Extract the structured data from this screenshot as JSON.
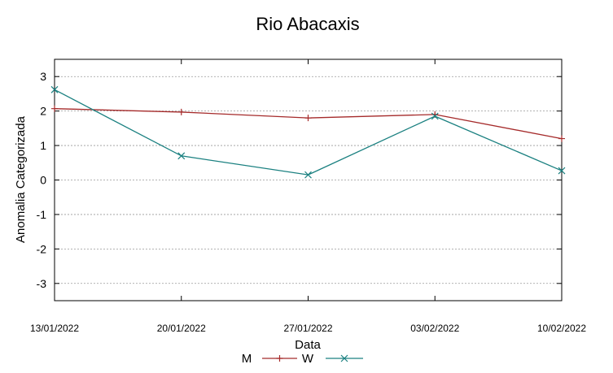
{
  "chart_data": {
    "type": "line",
    "title": "Rio Abacaxis",
    "xlabel": "Data",
    "ylabel": "Anomalia Categorizada",
    "categories": [
      "13/01/2022",
      "20/01/2022",
      "27/01/2022",
      "03/02/2022",
      "10/02/2022"
    ],
    "ylim": [
      -3.5,
      3.5
    ],
    "yticks": [
      "3",
      "2",
      "1",
      "0",
      "-1",
      "-2",
      "-3"
    ],
    "grid": true,
    "legend_position": "bottom-center",
    "series": [
      {
        "name": "M",
        "values": [
          2.07,
          1.97,
          1.8,
          1.9,
          1.2
        ],
        "color": "#a52a2a",
        "marker": "plus"
      },
      {
        "name": "W",
        "values": [
          2.62,
          0.7,
          0.15,
          1.85,
          0.27
        ],
        "color": "#1a8080",
        "marker": "cross"
      }
    ]
  }
}
